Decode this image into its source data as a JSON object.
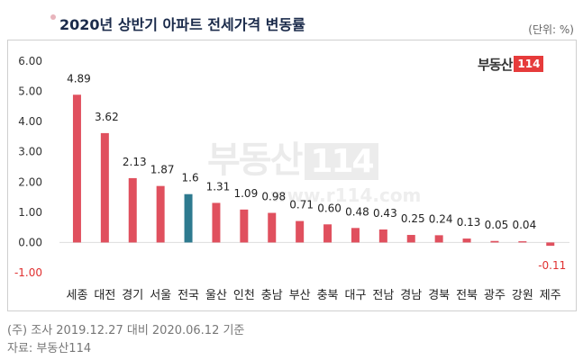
{
  "title": "2020년 상반기 아파트 전세가격 변동률",
  "unit": "(단위: %)",
  "brand": {
    "text": "부동산",
    "num": "114"
  },
  "watermark": {
    "text": "부동산",
    "num": "114",
    "url": "www.r114.com"
  },
  "notes": [
    "(주) 조사 2019.12.27 대비 2020.06.12 기준",
    "자료: 부동산114"
  ],
  "colors": {
    "bar": "#e0505e",
    "highlight": "#2e7a8f",
    "negative_label": "#e03030",
    "label": "#222222"
  },
  "chart_data": {
    "type": "bar",
    "title": "2020년 상반기 아파트 전세가격 변동률",
    "categories": [
      "세종",
      "대전",
      "경기",
      "서울",
      "전국",
      "울산",
      "인천",
      "충남",
      "부산",
      "충북",
      "대구",
      "전남",
      "경남",
      "경북",
      "전북",
      "광주",
      "강원",
      "제주"
    ],
    "values": [
      4.89,
      3.62,
      2.13,
      1.87,
      1.6,
      1.31,
      1.09,
      0.98,
      0.71,
      0.6,
      0.48,
      0.43,
      0.25,
      0.24,
      0.13,
      0.05,
      0.04,
      -0.11
    ],
    "value_labels": [
      "4.89",
      "3.62",
      "2.13",
      "1.87",
      "1.6",
      "1.31",
      "1.09",
      "0.98",
      "0.71",
      "0.60",
      "0.48",
      "0.43",
      "0.25",
      "0.24",
      "0.13",
      "0.05",
      "0.04",
      "-0.11"
    ],
    "highlight": "전국",
    "ylim": [
      -1.0,
      6.0
    ],
    "yticks": [
      "6.00",
      "5.00",
      "4.00",
      "3.00",
      "2.00",
      "1.00",
      "0.00",
      "-1.00"
    ],
    "ytick_values": [
      6,
      5,
      4,
      3,
      2,
      1,
      0,
      -1
    ],
    "grid": false
  }
}
